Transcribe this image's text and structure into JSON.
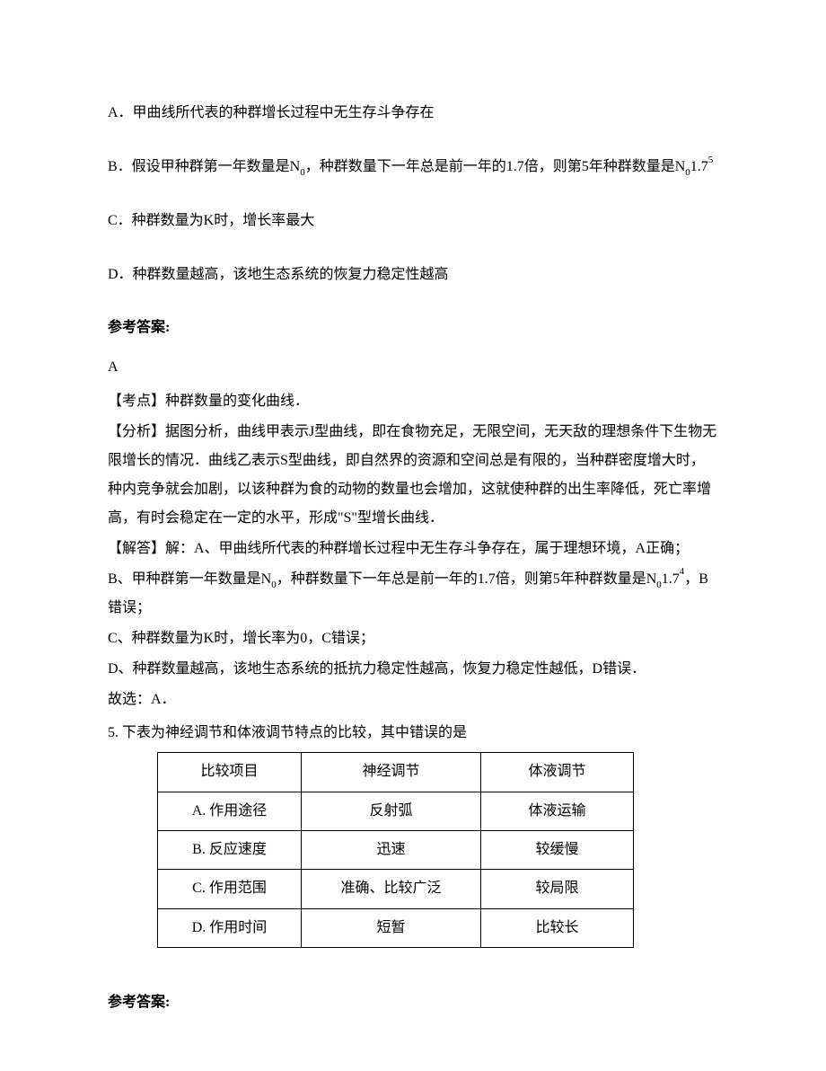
{
  "q4": {
    "opt_a": "A．甲曲线所代表的种群增长过程中无生存斗争存在",
    "opt_b_1": "B．假设甲种群第一年数量是N",
    "opt_b_sub1": "0",
    "opt_b_2": "，种群数量下一年总是前一年的1.7倍，则第5年种群数量是N",
    "opt_b_sub2": "0",
    "opt_b_3": "1.7",
    "opt_b_sup": "5",
    "opt_c": "C．种群数量为K时，增长率最大",
    "opt_d": "D．种群数量越高，该地生态系统的恢复力稳定性越高",
    "answer_heading": "参考答案:",
    "answer_letter": "A",
    "kaodian": "【考点】种群数量的变化曲线．",
    "fenxi": "【分析】据图分析，曲线甲表示J型曲线，即在食物充足，无限空间，无天敌的理想条件下生物无限增长的情况．曲线乙表示S型曲线，即自然界的资源和空间总是有限的，当种群密度增大时，种内竞争就会加剧，以该种群为食的动物的数量也会增加，这就使种群的出生率降低，死亡率增高，有时会稳定在一定的水平，形成\"S\"型增长曲线．",
    "jieda_a": "【解答】解：A、甲曲线所代表的种群增长过程中无生存斗争存在，属于理想环境，A正确；",
    "jieda_b_1": "B、甲种群第一年数量是N",
    "jieda_b_sub1": "0",
    "jieda_b_2": "，种群数量下一年总是前一年的1.7倍，则第5年种群数量是N",
    "jieda_b_sub2": "0",
    "jieda_b_3": "1.7",
    "jieda_b_sup": "4",
    "jieda_b_4": "，B错误；",
    "jieda_c": "C、种群数量为K时，增长率为0，C错误；",
    "jieda_d": "D、种群数量越高，该地生态系统的抵抗力稳定性越高，恢复力稳定性越低，D错误．",
    "gu_xuan": "故选：A．"
  },
  "q5": {
    "intro": "5. 下表为神经调节和体液调节特点的比较，其中错误的是",
    "table": {
      "header": [
        "比较项目",
        "神经调节",
        "体液调节"
      ],
      "rows": [
        [
          "A. 作用途径",
          "反射弧",
          "体液运输"
        ],
        [
          "B. 反应速度",
          "迅速",
          "较缓慢"
        ],
        [
          "C. 作用范围",
          "准确、比较广泛",
          "较局限"
        ],
        [
          "D. 作用时间",
          "短暂",
          "比较长"
        ]
      ]
    },
    "answer_heading": "参考答案:"
  }
}
